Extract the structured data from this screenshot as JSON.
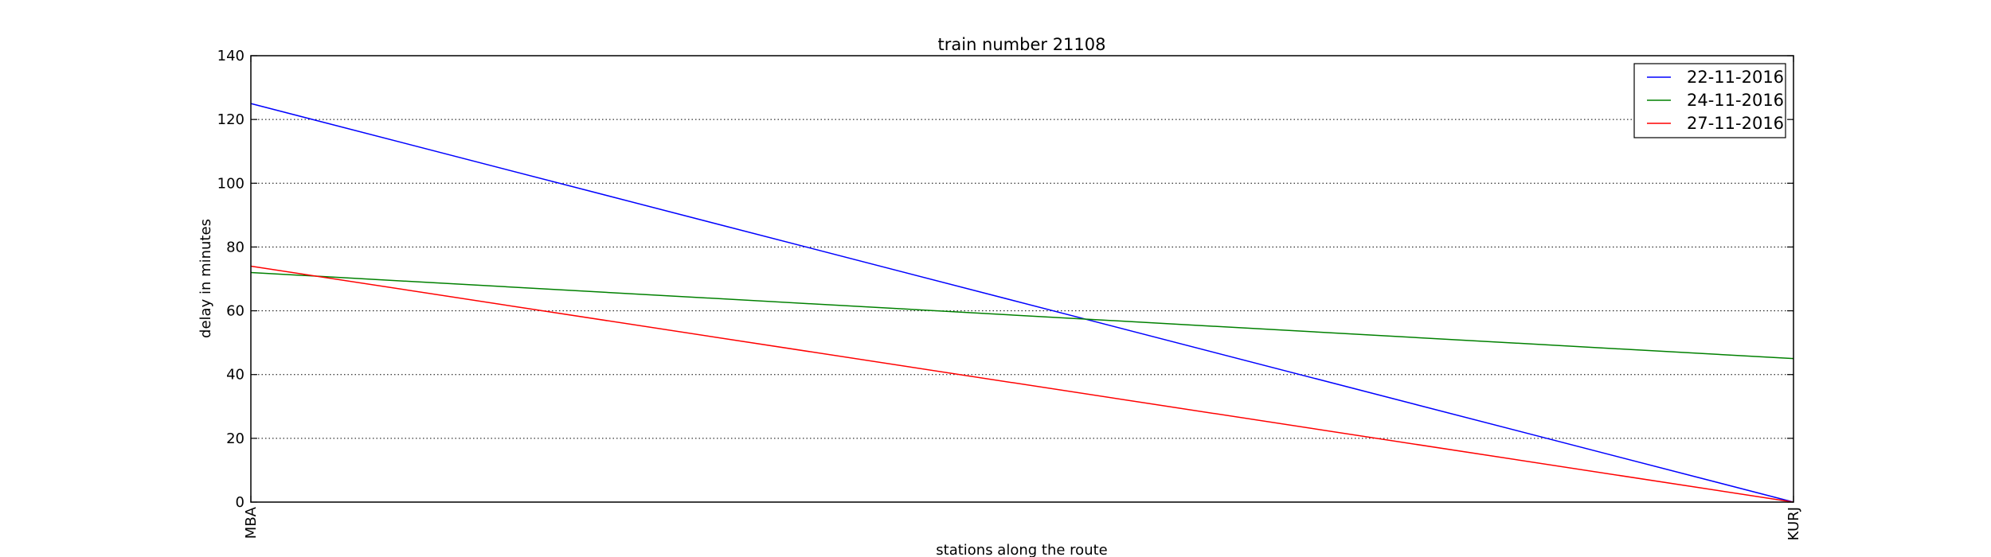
{
  "chart_data": {
    "type": "line",
    "title": "train number 21108",
    "xlabel": "stations along the route",
    "ylabel": "delay in minutes",
    "categories": [
      "MBA",
      "KURJ"
    ],
    "ylim": [
      0,
      140
    ],
    "yticks": [
      0,
      20,
      40,
      60,
      80,
      100,
      120,
      140
    ],
    "grid": "y-dotted",
    "legend_position": "top-right",
    "series": [
      {
        "name": "22-11-2016",
        "color": "#0000ff",
        "values": [
          125,
          0
        ]
      },
      {
        "name": "24-11-2016",
        "color": "#008000",
        "values": [
          72,
          45
        ]
      },
      {
        "name": "27-11-2016",
        "color": "#ff0000",
        "values": [
          74,
          0
        ]
      }
    ]
  }
}
